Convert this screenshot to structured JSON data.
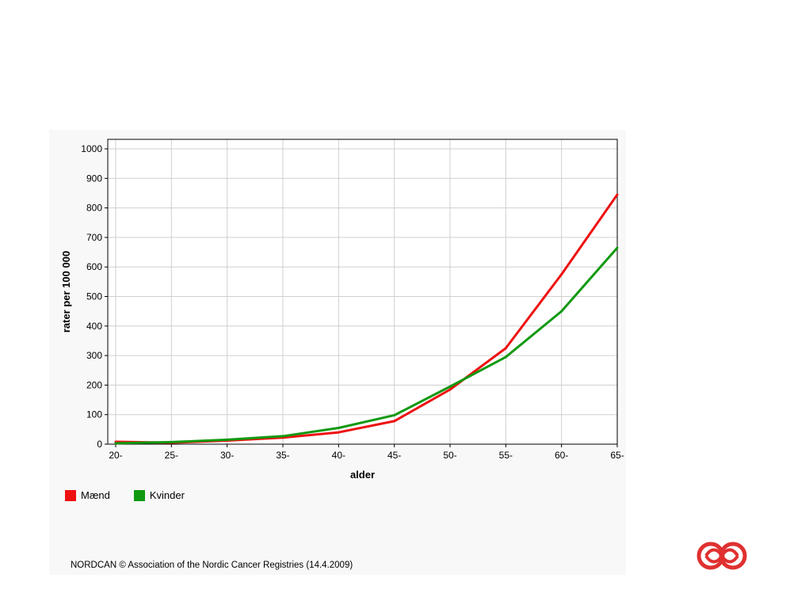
{
  "chart_data": {
    "type": "line",
    "xlabel": "alder",
    "ylabel": "rater per 100 000",
    "categories": [
      "20-",
      "25-",
      "30-",
      "35-",
      "40-",
      "45-",
      "50-",
      "55-",
      "60-",
      "65-"
    ],
    "x": [
      20,
      25,
      30,
      35,
      40,
      45,
      50,
      55,
      60,
      65
    ],
    "ylim": [
      0,
      1000
    ],
    "yticks": [
      0,
      100,
      200,
      300,
      400,
      500,
      600,
      700,
      800,
      900,
      1000
    ],
    "grid": true,
    "legend_position": "bottom-left",
    "series": [
      {
        "name": "Mænd",
        "color": "#ee1111",
        "values": [
          8,
          5,
          12,
          22,
          40,
          78,
          185,
          325,
          575,
          845
        ]
      },
      {
        "name": "Kvinder",
        "color": "#119911",
        "values": [
          3,
          7,
          15,
          27,
          55,
          98,
          195,
          295,
          450,
          665
        ]
      }
    ]
  },
  "footer_text": "NORDCAN © Association of the Nordic Cancer Registries (14.4.2009)",
  "logo": {
    "name": "nordcan-logo",
    "color": "#e03030"
  }
}
